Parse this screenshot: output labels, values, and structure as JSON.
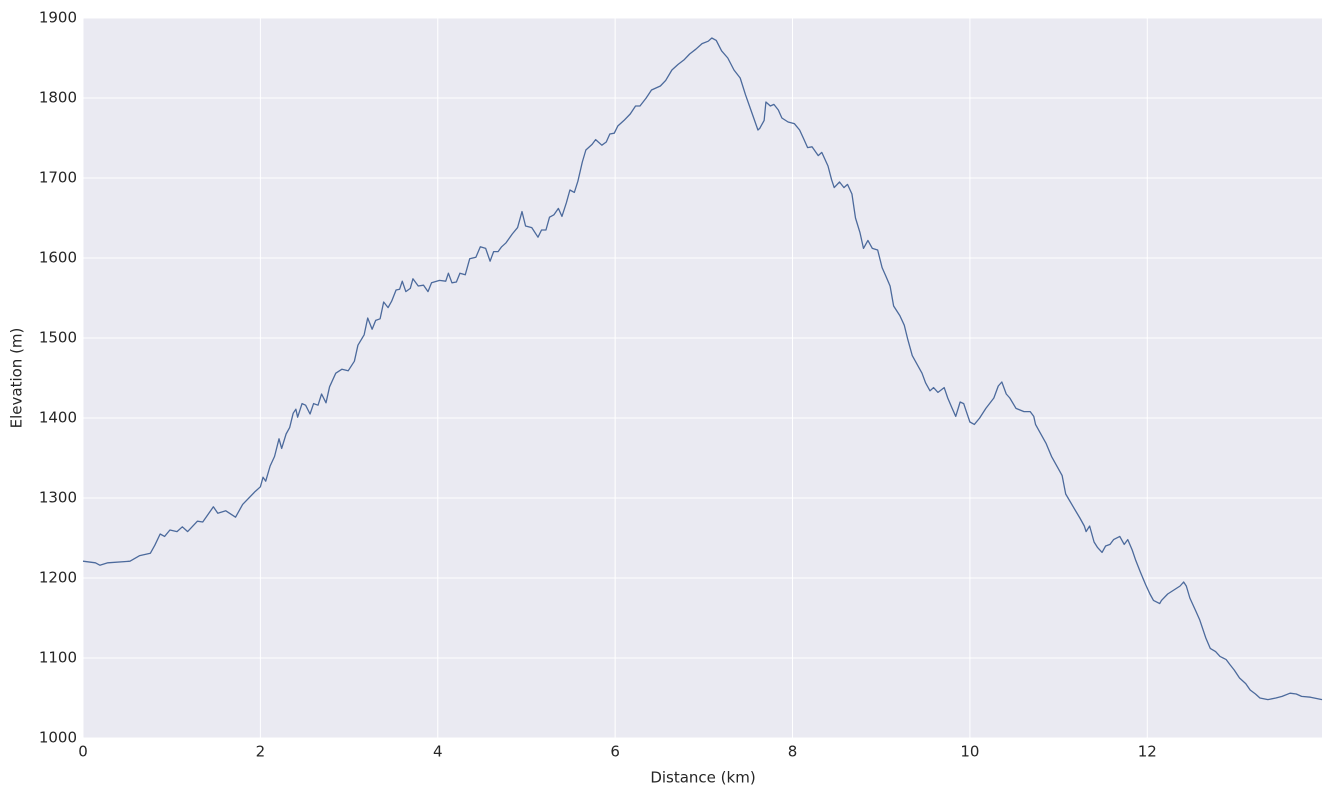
{
  "chart_data": {
    "type": "line",
    "xlabel": "Distance (km)",
    "ylabel": "Elevation (m)",
    "color": "#4c6a9c",
    "grid": true,
    "xlim": [
      0,
      13.97
    ],
    "xticks": [
      0,
      2,
      4,
      6,
      8,
      10,
      12
    ],
    "ylim": [
      1000,
      1900
    ],
    "yticks": [
      1000,
      1100,
      1200,
      1300,
      1400,
      1500,
      1600,
      1700,
      1800,
      1900
    ],
    "x": [
      0,
      0.14,
      0.19,
      0.28,
      0.53,
      0.64,
      0.76,
      0.81,
      0.87,
      0.92,
      0.98,
      1.06,
      1.12,
      1.18,
      1.29,
      1.35,
      1.47,
      1.52,
      1.61,
      1.72,
      1.8,
      1.94,
      2.0,
      2.03,
      2.06,
      2.11,
      2.16,
      2.21,
      2.24,
      2.29,
      2.33,
      2.37,
      2.4,
      2.42,
      2.47,
      2.51,
      2.56,
      2.6,
      2.65,
      2.69,
      2.74,
      2.78,
      2.85,
      2.92,
      2.99,
      3.06,
      3.1,
      3.17,
      3.21,
      3.26,
      3.3,
      3.35,
      3.39,
      3.44,
      3.48,
      3.53,
      3.57,
      3.6,
      3.64,
      3.69,
      3.72,
      3.78,
      3.84,
      3.89,
      3.93,
      4.02,
      4.09,
      4.12,
      4.16,
      4.21,
      4.25,
      4.31,
      4.36,
      4.43,
      4.48,
      4.54,
      4.59,
      4.63,
      4.68,
      4.72,
      4.77,
      4.84,
      4.9,
      4.95,
      4.99,
      5.06,
      5.13,
      5.17,
      5.22,
      5.26,
      5.31,
      5.36,
      5.4,
      5.45,
      5.49,
      5.54,
      5.58,
      5.63,
      5.67,
      5.74,
      5.78,
      5.85,
      5.9,
      5.94,
      5.99,
      6.03,
      6.1,
      6.17,
      6.23,
      6.28,
      6.35,
      6.41,
      6.51,
      6.57,
      6.64,
      6.71,
      6.78,
      6.84,
      6.91,
      6.98,
      7.05,
      7.09,
      7.14,
      7.2,
      7.27,
      7.34,
      7.41,
      7.47,
      7.54,
      7.61,
      7.63,
      7.68,
      7.7,
      7.75,
      7.79,
      7.84,
      7.88,
      7.95,
      8.02,
      8.08,
      8.13,
      8.17,
      8.22,
      8.29,
      8.33,
      8.4,
      8.44,
      8.47,
      8.53,
      8.58,
      8.62,
      8.67,
      8.71,
      8.76,
      8.8,
      8.85,
      8.9,
      8.96,
      9.01,
      9.05,
      9.1,
      9.14,
      9.21,
      9.26,
      9.3,
      9.35,
      9.41,
      9.46,
      9.5,
      9.55,
      9.59,
      9.64,
      9.71,
      9.75,
      9.8,
      9.84,
      9.89,
      9.93,
      9.96,
      10.0,
      10.05,
      10.11,
      10.18,
      10.27,
      10.32,
      10.36,
      10.41,
      10.45,
      10.52,
      10.61,
      10.68,
      10.72,
      10.74,
      10.79,
      10.86,
      10.92,
      10.99,
      11.04,
      11.08,
      11.17,
      11.24,
      11.29,
      11.31,
      11.35,
      11.4,
      11.44,
      11.49,
      11.53,
      11.58,
      11.62,
      11.69,
      11.74,
      11.78,
      11.83,
      11.87,
      11.92,
      11.98,
      12.03,
      12.07,
      12.14,
      12.16,
      12.23,
      12.3,
      12.37,
      12.41,
      12.44,
      12.48,
      12.55,
      12.59,
      12.66,
      12.71,
      12.77,
      12.82,
      12.89,
      12.93,
      12.98,
      13.04,
      13.11,
      13.16,
      13.22,
      13.27,
      13.36,
      13.45,
      13.52,
      13.61,
      13.68,
      13.74,
      13.84,
      13.97
    ],
    "values": [
      1221,
      1219,
      1216,
      1219,
      1221,
      1228,
      1231,
      1241,
      1255,
      1252,
      1260,
      1258,
      1264,
      1258,
      1271,
      1270,
      1289,
      1281,
      1284,
      1276,
      1292,
      1308,
      1314,
      1326,
      1321,
      1340,
      1352,
      1374,
      1362,
      1380,
      1388,
      1406,
      1411,
      1401,
      1418,
      1416,
      1405,
      1418,
      1416,
      1430,
      1419,
      1439,
      1456,
      1461,
      1459,
      1471,
      1491,
      1504,
      1525,
      1511,
      1522,
      1524,
      1545,
      1538,
      1546,
      1560,
      1561,
      1571,
      1558,
      1562,
      1574,
      1565,
      1566,
      1558,
      1569,
      1572,
      1571,
      1581,
      1569,
      1570,
      1581,
      1579,
      1599,
      1601,
      1614,
      1612,
      1596,
      1608,
      1608,
      1614,
      1619,
      1630,
      1638,
      1658,
      1640,
      1638,
      1626,
      1635,
      1635,
      1651,
      1654,
      1662,
      1652,
      1669,
      1685,
      1682,
      1696,
      1720,
      1735,
      1742,
      1748,
      1741,
      1745,
      1755,
      1756,
      1765,
      1772,
      1780,
      1790,
      1790,
      1800,
      1810,
      1815,
      1822,
      1835,
      1842,
      1848,
      1855,
      1861,
      1868,
      1871,
      1875,
      1872,
      1859,
      1850,
      1835,
      1825,
      1804,
      1782,
      1760,
      1762,
      1772,
      1795,
      1790,
      1792,
      1785,
      1775,
      1770,
      1768,
      1760,
      1748,
      1738,
      1739,
      1728,
      1732,
      1715,
      1698,
      1688,
      1695,
      1688,
      1692,
      1680,
      1650,
      1632,
      1612,
      1622,
      1612,
      1610,
      1588,
      1578,
      1565,
      1540,
      1528,
      1516,
      1498,
      1478,
      1466,
      1456,
      1444,
      1434,
      1438,
      1432,
      1438,
      1425,
      1412,
      1402,
      1420,
      1418,
      1408,
      1395,
      1392,
      1400,
      1412,
      1425,
      1440,
      1445,
      1430,
      1425,
      1412,
      1408,
      1408,
      1402,
      1392,
      1382,
      1368,
      1352,
      1338,
      1328,
      1305,
      1288,
      1275,
      1265,
      1258,
      1265,
      1245,
      1238,
      1232,
      1240,
      1242,
      1248,
      1252,
      1242,
      1248,
      1235,
      1222,
      1208,
      1192,
      1180,
      1172,
      1168,
      1172,
      1180,
      1185,
      1190,
      1195,
      1190,
      1175,
      1158,
      1148,
      1125,
      1112,
      1108,
      1102,
      1098,
      1092,
      1085,
      1075,
      1068,
      1060,
      1055,
      1050,
      1048,
      1050,
      1052,
      1056,
      1055,
      1052,
      1051,
      1048
    ]
  }
}
